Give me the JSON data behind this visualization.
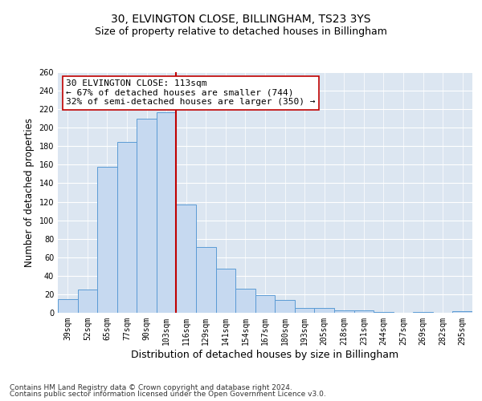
{
  "title": "30, ELVINGTON CLOSE, BILLINGHAM, TS23 3YS",
  "subtitle": "Size of property relative to detached houses in Billingham",
  "xlabel": "Distribution of detached houses by size in Billingham",
  "ylabel": "Number of detached properties",
  "bin_labels": [
    "39sqm",
    "52sqm",
    "65sqm",
    "77sqm",
    "90sqm",
    "103sqm",
    "116sqm",
    "129sqm",
    "141sqm",
    "154sqm",
    "167sqm",
    "180sqm",
    "193sqm",
    "205sqm",
    "218sqm",
    "231sqm",
    "244sqm",
    "257sqm",
    "269sqm",
    "282sqm",
    "295sqm"
  ],
  "bar_heights": [
    15,
    25,
    158,
    185,
    210,
    217,
    117,
    71,
    48,
    26,
    19,
    14,
    5,
    5,
    3,
    3,
    1,
    0,
    1,
    0,
    2
  ],
  "bar_color": "#c6d9f0",
  "bar_edge_color": "#5b9bd5",
  "vline_x": 5.5,
  "vline_color": "#c00000",
  "annotation_line1": "30 ELVINGTON CLOSE: 113sqm",
  "annotation_line2": "← 67% of detached houses are smaller (744)",
  "annotation_line3": "32% of semi-detached houses are larger (350) →",
  "annotation_box_color": "white",
  "annotation_box_edge_color": "#c00000",
  "ylim": [
    0,
    260
  ],
  "yticks": [
    0,
    20,
    40,
    60,
    80,
    100,
    120,
    140,
    160,
    180,
    200,
    220,
    240,
    260
  ],
  "background_color": "#dce6f1",
  "footer_line1": "Contains HM Land Registry data © Crown copyright and database right 2024.",
  "footer_line2": "Contains public sector information licensed under the Open Government Licence v3.0.",
  "title_fontsize": 10,
  "subtitle_fontsize": 9,
  "tick_fontsize": 7,
  "ylabel_fontsize": 8.5,
  "xlabel_fontsize": 9,
  "annotation_fontsize": 8,
  "footer_fontsize": 6.5
}
